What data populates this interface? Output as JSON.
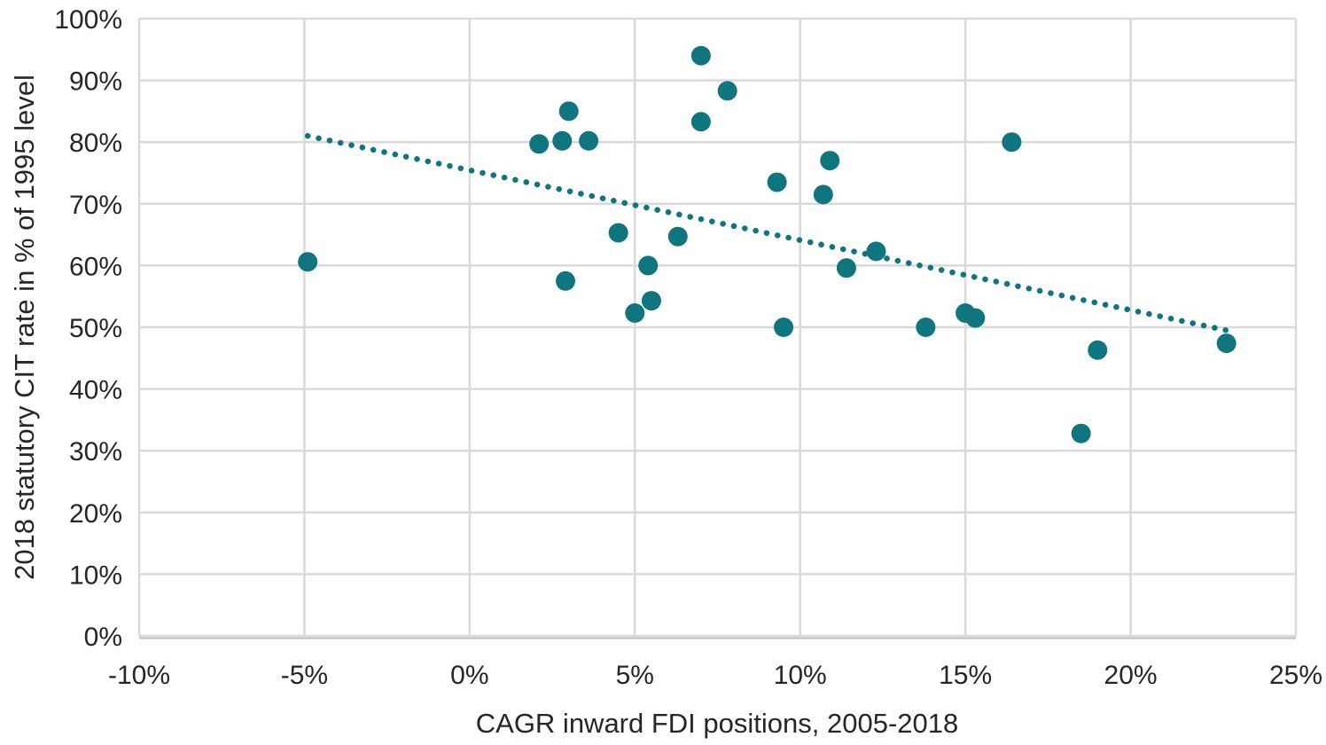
{
  "figure": {
    "background": "#ffffff",
    "colors": {
      "marker": "#0F757E",
      "trendline": "#0F757E",
      "gridline": "#D9D9D9",
      "axis_line": "#BFBFBF",
      "text": "#262626"
    }
  },
  "chart_data": {
    "type": "scatter",
    "title": "",
    "xlabel": "CAGR inward FDI positions, 2005-2018",
    "ylabel": "2018 statutory CIT rate in % of 1995 level",
    "xlim": [
      -10,
      25
    ],
    "ylim": [
      0,
      100
    ],
    "grid": true,
    "legend": false,
    "x_ticks": {
      "values": [
        -10,
        -5,
        0,
        5,
        10,
        15,
        20,
        25
      ],
      "labels": [
        "-10%",
        "-5%",
        "0%",
        "5%",
        "10%",
        "15%",
        "20%",
        "25%"
      ]
    },
    "y_ticks": {
      "values": [
        0,
        10,
        20,
        30,
        40,
        50,
        60,
        70,
        80,
        90,
        100
      ],
      "labels": [
        "0%",
        "10%",
        "20%",
        "30%",
        "40%",
        "50%",
        "60%",
        "70%",
        "80%",
        "90%",
        "100%"
      ]
    },
    "points": [
      [
        -4.9,
        60.6
      ],
      [
        2.1,
        79.7
      ],
      [
        2.8,
        80.2
      ],
      [
        3.0,
        85.0
      ],
      [
        3.6,
        80.2
      ],
      [
        2.9,
        57.5
      ],
      [
        4.5,
        65.3
      ],
      [
        5.0,
        52.3
      ],
      [
        5.4,
        60.0
      ],
      [
        5.5,
        54.3
      ],
      [
        6.3,
        64.7
      ],
      [
        7.0,
        94.0
      ],
      [
        7.0,
        83.3
      ],
      [
        7.8,
        88.3
      ],
      [
        9.3,
        73.5
      ],
      [
        9.5,
        50.0
      ],
      [
        10.7,
        71.5
      ],
      [
        10.9,
        77.0
      ],
      [
        11.4,
        59.6
      ],
      [
        12.3,
        62.3
      ],
      [
        13.8,
        50.0
      ],
      [
        15.0,
        52.3
      ],
      [
        15.3,
        51.5
      ],
      [
        16.4,
        80.0
      ],
      [
        18.5,
        32.8
      ],
      [
        19.0,
        46.3
      ],
      [
        22.9,
        47.4
      ]
    ],
    "trendline": {
      "style": "dotted",
      "x1": -4.9,
      "y1": 81.0,
      "x2": 22.9,
      "y2": 49.5
    }
  }
}
